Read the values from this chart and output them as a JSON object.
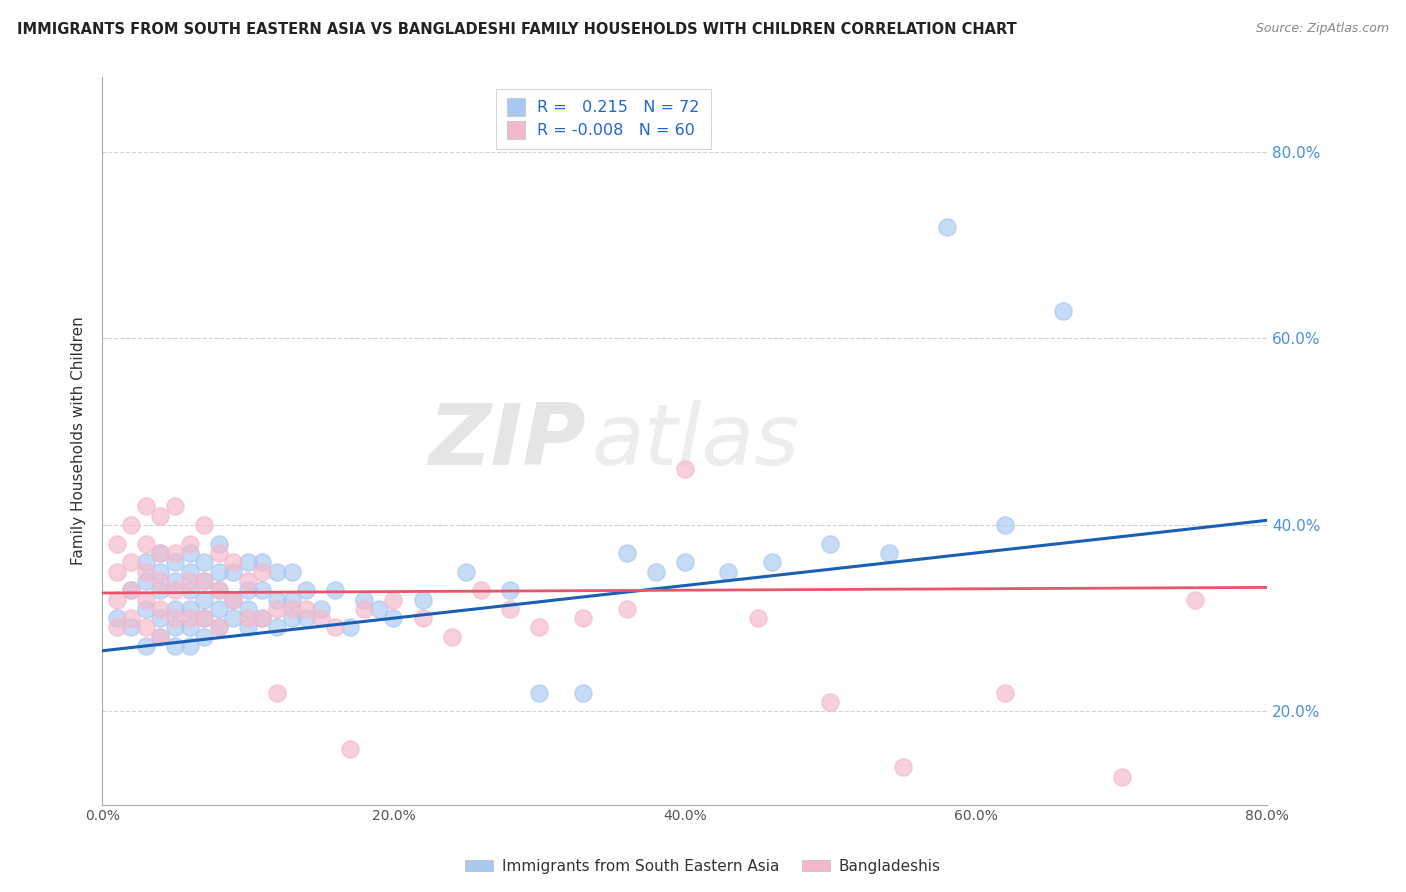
{
  "title": "IMMIGRANTS FROM SOUTH EASTERN ASIA VS BANGLADESHI FAMILY HOUSEHOLDS WITH CHILDREN CORRELATION CHART",
  "source": "Source: ZipAtlas.com",
  "ylabel": "Family Households with Children",
  "xlim": [
    0.0,
    0.8
  ],
  "ylim": [
    0.1,
    0.88
  ],
  "legend_r1": "0.215",
  "legend_n1": "72",
  "legend_r2": "-0.008",
  "legend_n2": "60",
  "blue_color": "#a8c8f0",
  "pink_color": "#f5b8cb",
  "line_blue": "#1a5fb4",
  "line_pink": "#e8556a",
  "legend_text_color": "#2266cc",
  "watermark_zip": "ZIP",
  "watermark_atlas": "atlas",
  "blue_scatter_x": [
    0.01,
    0.02,
    0.02,
    0.03,
    0.03,
    0.03,
    0.03,
    0.04,
    0.04,
    0.04,
    0.04,
    0.04,
    0.05,
    0.05,
    0.05,
    0.05,
    0.05,
    0.06,
    0.06,
    0.06,
    0.06,
    0.06,
    0.06,
    0.07,
    0.07,
    0.07,
    0.07,
    0.07,
    0.08,
    0.08,
    0.08,
    0.08,
    0.08,
    0.09,
    0.09,
    0.09,
    0.1,
    0.1,
    0.1,
    0.1,
    0.11,
    0.11,
    0.11,
    0.12,
    0.12,
    0.12,
    0.13,
    0.13,
    0.13,
    0.14,
    0.14,
    0.15,
    0.16,
    0.17,
    0.18,
    0.19,
    0.2,
    0.22,
    0.25,
    0.28,
    0.3,
    0.33,
    0.36,
    0.38,
    0.4,
    0.43,
    0.46,
    0.5,
    0.54,
    0.58,
    0.62,
    0.66
  ],
  "blue_scatter_y": [
    0.3,
    0.29,
    0.33,
    0.27,
    0.31,
    0.34,
    0.36,
    0.28,
    0.3,
    0.33,
    0.35,
    0.37,
    0.27,
    0.29,
    0.31,
    0.34,
    0.36,
    0.27,
    0.29,
    0.31,
    0.33,
    0.35,
    0.37,
    0.28,
    0.3,
    0.32,
    0.34,
    0.36,
    0.29,
    0.31,
    0.33,
    0.35,
    0.38,
    0.3,
    0.32,
    0.35,
    0.29,
    0.31,
    0.33,
    0.36,
    0.3,
    0.33,
    0.36,
    0.29,
    0.32,
    0.35,
    0.3,
    0.32,
    0.35,
    0.3,
    0.33,
    0.31,
    0.33,
    0.29,
    0.32,
    0.31,
    0.3,
    0.32,
    0.35,
    0.33,
    0.22,
    0.22,
    0.37,
    0.35,
    0.36,
    0.35,
    0.36,
    0.38,
    0.37,
    0.72,
    0.4,
    0.63
  ],
  "pink_scatter_x": [
    0.01,
    0.01,
    0.01,
    0.01,
    0.02,
    0.02,
    0.02,
    0.02,
    0.03,
    0.03,
    0.03,
    0.03,
    0.03,
    0.04,
    0.04,
    0.04,
    0.04,
    0.04,
    0.05,
    0.05,
    0.05,
    0.05,
    0.06,
    0.06,
    0.06,
    0.07,
    0.07,
    0.07,
    0.08,
    0.08,
    0.08,
    0.09,
    0.09,
    0.1,
    0.1,
    0.11,
    0.11,
    0.12,
    0.12,
    0.13,
    0.14,
    0.15,
    0.16,
    0.17,
    0.18,
    0.2,
    0.22,
    0.24,
    0.26,
    0.28,
    0.3,
    0.33,
    0.36,
    0.4,
    0.45,
    0.5,
    0.55,
    0.62,
    0.7,
    0.75
  ],
  "pink_scatter_y": [
    0.29,
    0.32,
    0.35,
    0.38,
    0.3,
    0.33,
    0.36,
    0.4,
    0.29,
    0.32,
    0.35,
    0.38,
    0.42,
    0.28,
    0.31,
    0.34,
    0.37,
    0.41,
    0.3,
    0.33,
    0.37,
    0.42,
    0.3,
    0.34,
    0.38,
    0.3,
    0.34,
    0.4,
    0.29,
    0.33,
    0.37,
    0.32,
    0.36,
    0.3,
    0.34,
    0.3,
    0.35,
    0.31,
    0.22,
    0.31,
    0.31,
    0.3,
    0.29,
    0.16,
    0.31,
    0.32,
    0.3,
    0.28,
    0.33,
    0.31,
    0.29,
    0.3,
    0.31,
    0.46,
    0.3,
    0.21,
    0.14,
    0.22,
    0.13,
    0.32
  ]
}
